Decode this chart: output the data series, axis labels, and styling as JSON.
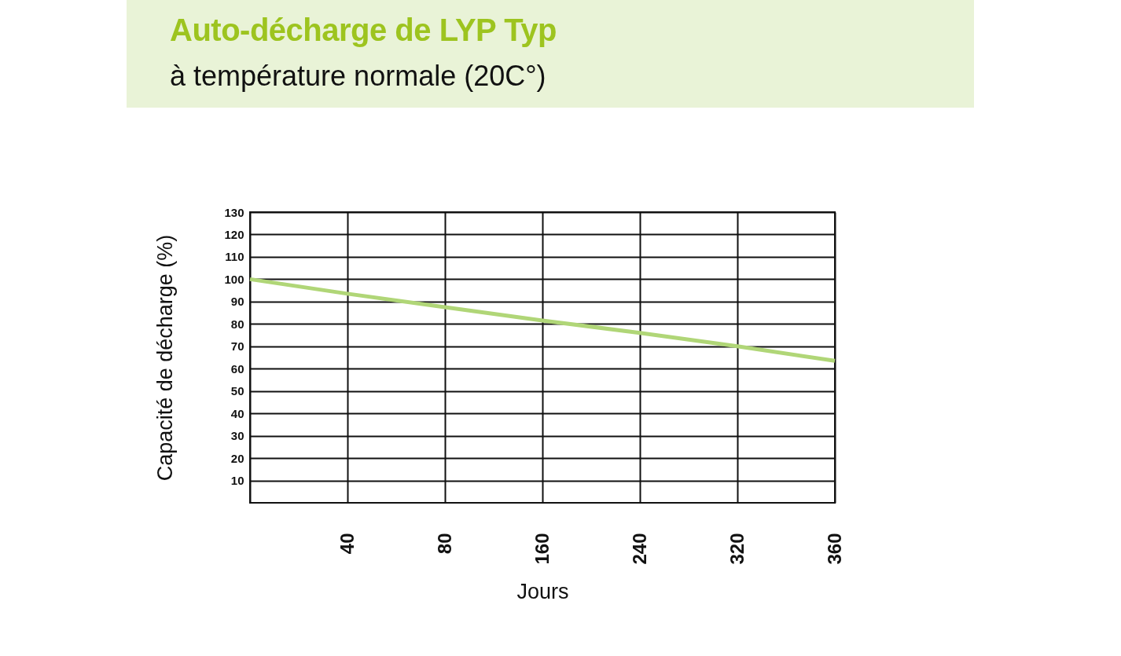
{
  "chart_data": {
    "type": "line",
    "title": "Auto-décharge de LYP Typ",
    "subtitle": "à température normale (20C°)",
    "xlabel": "Jours",
    "ylabel": "Capacité de décharge (%)",
    "categories": [
      null,
      "40",
      "80",
      "160",
      "240",
      "320",
      "360"
    ],
    "series": [
      {
        "color": "#b0d677",
        "values": [
          100,
          93.5,
          87.5,
          81.5,
          76,
          70,
          63.5
        ]
      }
    ],
    "ylim": [
      0,
      130
    ],
    "yticks": [
      10,
      20,
      30,
      40,
      50,
      60,
      70,
      80,
      90,
      100,
      110,
      120,
      130
    ],
    "grid": true,
    "marker": "none",
    "line_style": "solid"
  }
}
